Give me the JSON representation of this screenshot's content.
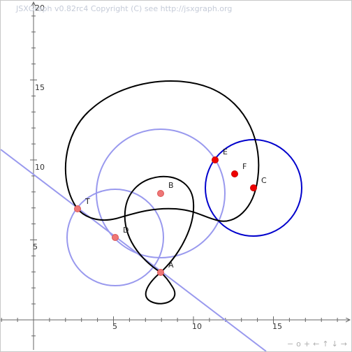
{
  "copyright": "JSXGraph v0.82rc4 Copyright (C) see http://jsxgraph.org",
  "axes": {
    "x_ticks": [
      "5",
      "10",
      "15"
    ],
    "y_ticks": [
      "5",
      "10",
      "15",
      "20"
    ]
  },
  "points": {
    "A": "A",
    "B": "B",
    "C": "C",
    "D": "D",
    "E": "E",
    "F": "F",
    "T": "T"
  },
  "navbar": {
    "zoom_out": "−",
    "zoom_reset": "o",
    "zoom_in": "+",
    "left": "←",
    "up": "↑",
    "down": "↓",
    "right": "→"
  },
  "colors": {
    "curve": "#000000",
    "circle_light": "#9999ee",
    "circle_dark": "#0000cc",
    "line": "#9999ee",
    "point_strong": "#ee0000",
    "point_faint": "#ee7777",
    "axis": "#666666"
  }
}
